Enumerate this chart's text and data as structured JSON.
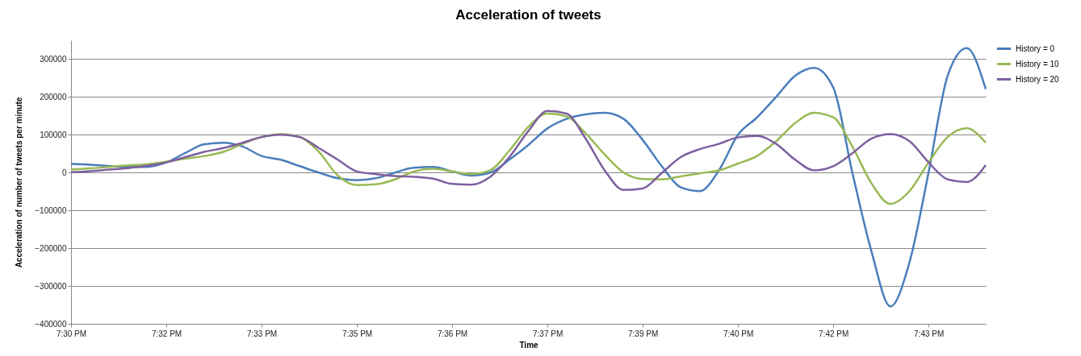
{
  "chart_data": {
    "type": "line",
    "title": "Acceleration of tweets",
    "xlabel": "Time",
    "ylabel": "Acceleration of number of tweets per minute",
    "categories": [
      "7:30 PM",
      null,
      null,
      null,
      null,
      "7:32 PM",
      null,
      null,
      null,
      null,
      "7:33 PM",
      null,
      null,
      null,
      null,
      "7:35 PM",
      null,
      null,
      null,
      null,
      "7:36 PM",
      null,
      null,
      null,
      null,
      "7:37 PM",
      null,
      null,
      null,
      null,
      "7:39 PM",
      null,
      null,
      null,
      null,
      "7:40 PM",
      null,
      null,
      null,
      null,
      "7:42 PM",
      null,
      null,
      null,
      null,
      "7:43 PM",
      null,
      null,
      null
    ],
    "series": [
      {
        "name": "History = 0",
        "color": "#4a7ebb",
        "values": [
          23000,
          21000,
          17000,
          15000,
          15000,
          27000,
          52000,
          75000,
          79000,
          69000,
          44000,
          34000,
          17000,
          0,
          -15000,
          -20000,
          -15000,
          0,
          13000,
          15000,
          3000,
          -8000,
          0,
          34000,
          73000,
          117000,
          142000,
          154000,
          158000,
          142000,
          86000,
          17000,
          -39000,
          -49000,
          6000,
          100000,
          146000,
          200000,
          256000,
          277000,
          225000,
          0,
          -208000,
          -354000,
          -237000,
          0,
          256000,
          329000,
          221000
        ]
      },
      {
        "name": "History = 10",
        "color": "#98b954",
        "values": [
          8000,
          11000,
          15000,
          19000,
          22000,
          29000,
          37000,
          44000,
          55000,
          76000,
          94000,
          102000,
          94000,
          55000,
          -8000,
          -33000,
          -31000,
          -18000,
          3000,
          10000,
          3000,
          -4000,
          6000,
          58000,
          121000,
          156000,
          149000,
          104000,
          48000,
          0,
          -17000,
          -18000,
          -10000,
          -2000,
          6000,
          24000,
          44000,
          83000,
          131000,
          158000,
          146000,
          69000,
          -28000,
          -83000,
          -49000,
          27000,
          94000,
          117000,
          79000
        ]
      },
      {
        "name": "History = 20",
        "color": "#7d60a0",
        "values": [
          1000,
          4000,
          8000,
          12000,
          18000,
          27000,
          41000,
          55000,
          65000,
          79000,
          94000,
          100000,
          94000,
          65000,
          34000,
          3000,
          -4000,
          -9000,
          -11000,
          -16000,
          -30000,
          -32000,
          -11000,
          41000,
          110000,
          163000,
          156000,
          90000,
          6000,
          -46000,
          -42000,
          -1000,
          41000,
          62000,
          76000,
          93000,
          97000,
          76000,
          34000,
          6000,
          17000,
          51000,
          90000,
          102000,
          83000,
          27000,
          -18000,
          -25000,
          20000
        ]
      }
    ],
    "ylim": [
      -400000,
      350000
    ],
    "yticks": [
      -400000,
      -300000,
      -200000,
      -100000,
      0,
      100000,
      200000,
      300000
    ],
    "grid": "y",
    "legend": "right",
    "line_style": "solid"
  }
}
